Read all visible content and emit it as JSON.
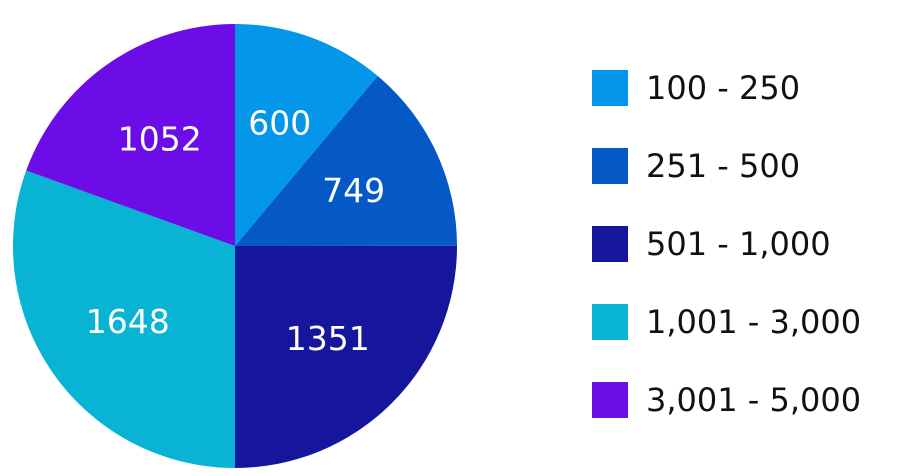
{
  "chart_data": {
    "type": "pie",
    "title": "",
    "categories": [
      "100 - 250",
      "251 - 500",
      "501 - 1,000",
      "1,001 - 3,000",
      "3,001 - 5,000"
    ],
    "values": [
      600,
      749,
      1351,
      1648,
      1052
    ],
    "data_labels": [
      "600",
      "749",
      "1351",
      "1648",
      "1052"
    ],
    "colors": [
      "#0496e8",
      "#0459c7",
      "#15169b",
      "#08b3d3",
      "#6c0ce6"
    ],
    "start_angle": "12 o'clock",
    "direction": "clockwise",
    "legend": {
      "position": "right",
      "entries": [
        "100 - 250",
        "251 - 500",
        "501 - 1,000",
        "1,001 - 3,000",
        "3,001 - 5,000"
      ]
    }
  }
}
